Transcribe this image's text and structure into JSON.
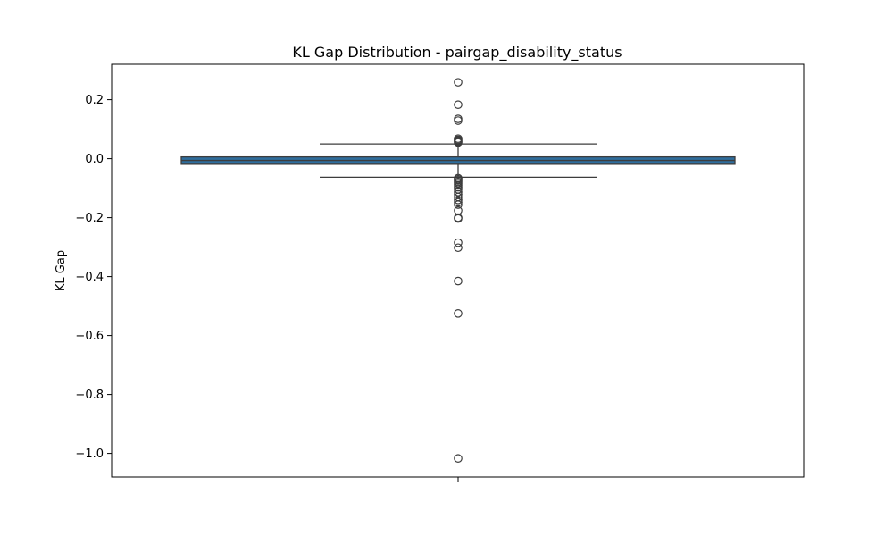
{
  "chart_data": {
    "type": "box",
    "title": "KL Gap Distribution - pairgap_disability_status",
    "xlabel": "",
    "ylabel": "KL Gap",
    "ylim": [
      -1.08,
      0.32
    ],
    "yticks": [
      0.2,
      0.0,
      -0.2,
      -0.4,
      -0.6,
      -0.8,
      -1.0
    ],
    "ytick_labels": [
      "0.2",
      "0.0",
      "−0.2",
      "−0.4",
      "−0.6",
      "−0.8",
      "−1.0"
    ],
    "grid": false,
    "legend": "none",
    "box_color": "#2e6e9e",
    "box_edge_color": "#3d3d3d",
    "box": {
      "q1": -0.019,
      "median": -0.006,
      "q3": 0.006,
      "whisker_low": -0.063,
      "whisker_high": 0.05
    },
    "outliers": [
      0.259,
      0.183,
      0.135,
      0.129,
      0.068,
      0.064,
      0.061,
      0.058,
      0.055,
      -0.066,
      -0.07,
      -0.074,
      -0.079,
      -0.084,
      -0.09,
      -0.097,
      -0.104,
      -0.113,
      -0.121,
      -0.13,
      -0.14,
      -0.148,
      -0.156,
      -0.176,
      -0.2,
      -0.203,
      -0.285,
      -0.302,
      -0.415,
      -0.525,
      -1.017
    ]
  }
}
